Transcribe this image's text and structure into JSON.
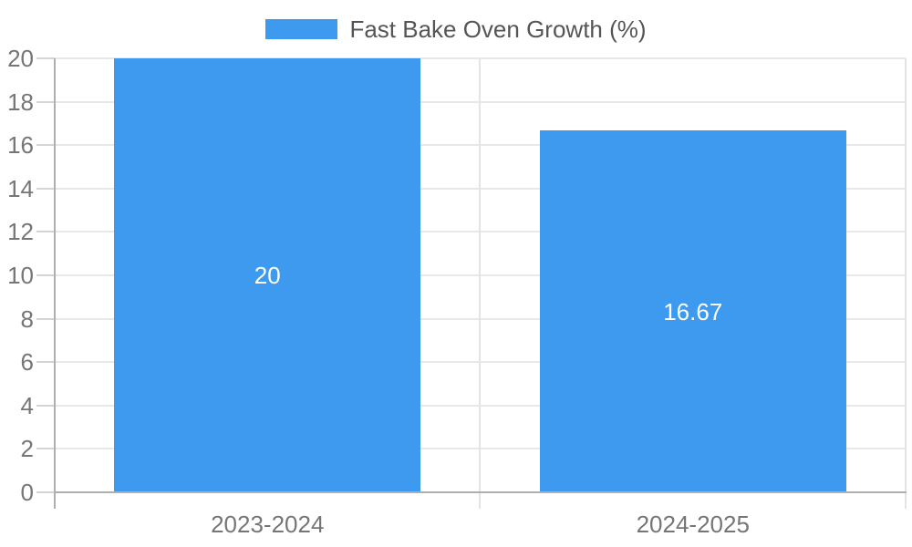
{
  "legend": {
    "label": "Fast Bake Oven Growth (%)"
  },
  "chart_data": {
    "type": "bar",
    "title": "Fast Bake Oven Growth (%)",
    "categories": [
      "2023-2024",
      "2024-2025"
    ],
    "series": [
      {
        "name": "Fast Bake Oven Growth (%)",
        "values": [
          20,
          16.67
        ]
      }
    ],
    "values": [
      20,
      16.67
    ],
    "value_labels": [
      "20",
      "16.67"
    ],
    "xlabel": "",
    "ylabel": "",
    "ylim": [
      0,
      20
    ],
    "yticks": [
      0,
      2,
      4,
      6,
      8,
      10,
      12,
      14,
      16,
      18,
      20
    ],
    "grid": true,
    "legend_position": "top-center",
    "colors": {
      "bar": "#3D9AEE",
      "data_label": "#FFFFFF",
      "axis_text": "#767676",
      "legend_text": "#555555",
      "gridline": "#E8E8E8",
      "boundary_gridline": "#E4E4E4",
      "axis_line": "#AFAFAF",
      "tick_dash": "#D4D4D4",
      "background": "#FFFFFF"
    }
  }
}
